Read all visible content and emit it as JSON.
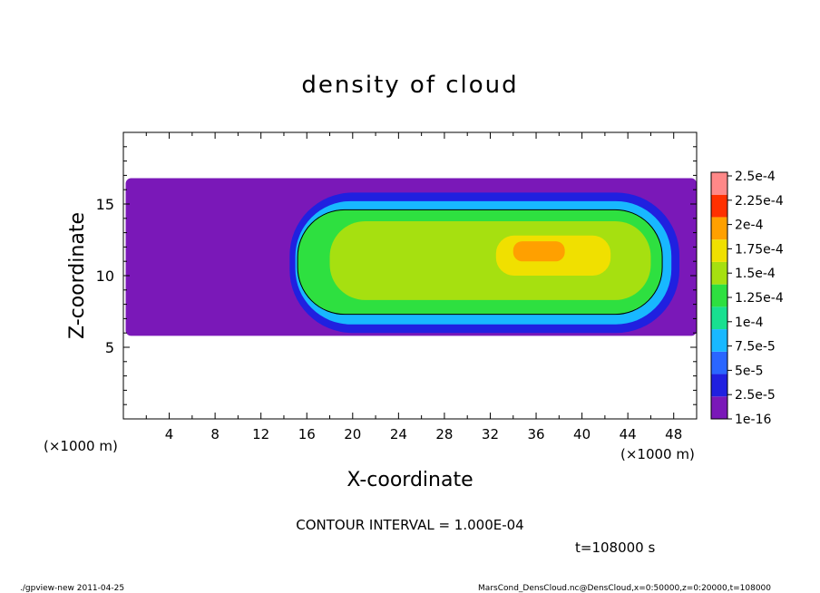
{
  "chart_data": {
    "type": "heatmap",
    "title": "density of cloud",
    "xlabel": "X-coordinate",
    "ylabel": "Z-coordinate",
    "x_unit": "(×1000 m)",
    "y_unit": "(×1000 m)",
    "xlim": [
      0,
      50
    ],
    "ylim": [
      0,
      20
    ],
    "x_ticks": [
      4,
      8,
      12,
      16,
      20,
      24,
      28,
      32,
      36,
      40,
      44,
      48
    ],
    "y_ticks": [
      5,
      10,
      15
    ],
    "colorbar": {
      "levels": [
        "1e-16",
        "2.5e-5",
        "5e-5",
        "7.5e-5",
        "1e-4",
        "1.25e-4",
        "1.5e-4",
        "1.75e-4",
        "2e-4",
        "2.25e-4",
        "2.5e-4"
      ],
      "colors": [
        "#7a18b8",
        "#2020e0",
        "#2a66ff",
        "#18b8ff",
        "#18e090",
        "#2ee040",
        "#a6e010",
        "#f0e000",
        "#ffa000",
        "#ff3000",
        "#ff8888"
      ]
    },
    "regions": [
      {
        "level": 0,
        "x": [
          0.2,
          50
        ],
        "z": [
          5.8,
          16.8
        ]
      },
      {
        "level": 1,
        "x": [
          14.5,
          48.5
        ],
        "z": [
          6.0,
          15.8
        ]
      },
      {
        "level": 3,
        "x": [
          15.0,
          47.8
        ],
        "z": [
          6.6,
          15.2
        ]
      },
      {
        "level": 5,
        "x": [
          15.2,
          47.0
        ],
        "z": [
          7.3,
          14.6
        ]
      },
      {
        "level": 6,
        "x": [
          18.0,
          46.0
        ],
        "z": [
          8.3,
          13.8
        ]
      },
      {
        "level": 7,
        "x": [
          32.5,
          42.5
        ],
        "z": [
          10.0,
          12.8
        ]
      },
      {
        "level": 8,
        "x": [
          34.0,
          38.5
        ],
        "z": [
          11.0,
          12.4
        ]
      }
    ],
    "contour_interval_text": "CONTOUR INTERVAL = 1.000E-04",
    "time_text": "t=108000 s"
  },
  "footer": {
    "left": "./gpview-new   2011-04-25",
    "right": "MarsCond_DensCloud.nc@DensCloud,x=0:50000,z=0:20000,t=108000"
  }
}
